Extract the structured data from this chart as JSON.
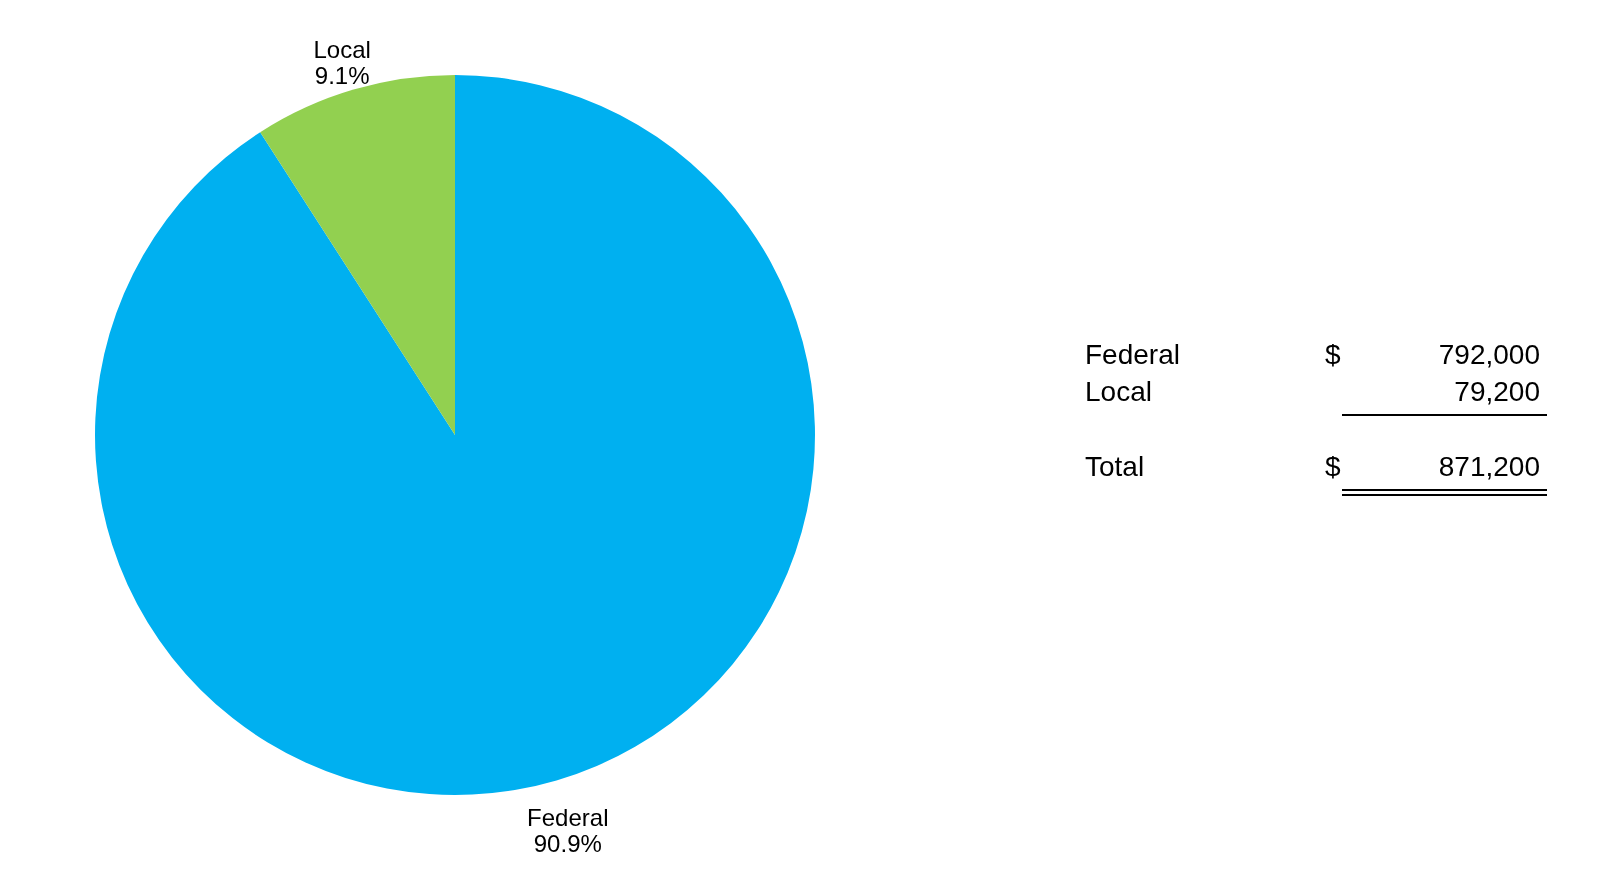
{
  "chart_data": {
    "type": "pie",
    "categories": [
      "Federal",
      "Local"
    ],
    "values": [
      90.9,
      9.1
    ],
    "colors": [
      "#00b0f0",
      "#92d050"
    ],
    "value_labels": [
      "90.9%",
      "9.1%"
    ],
    "legend": false,
    "annotations": [
      "Federal",
      "$",
      "792,000",
      "Local",
      "79,200",
      "Total",
      "$",
      "871,200"
    ]
  }
}
